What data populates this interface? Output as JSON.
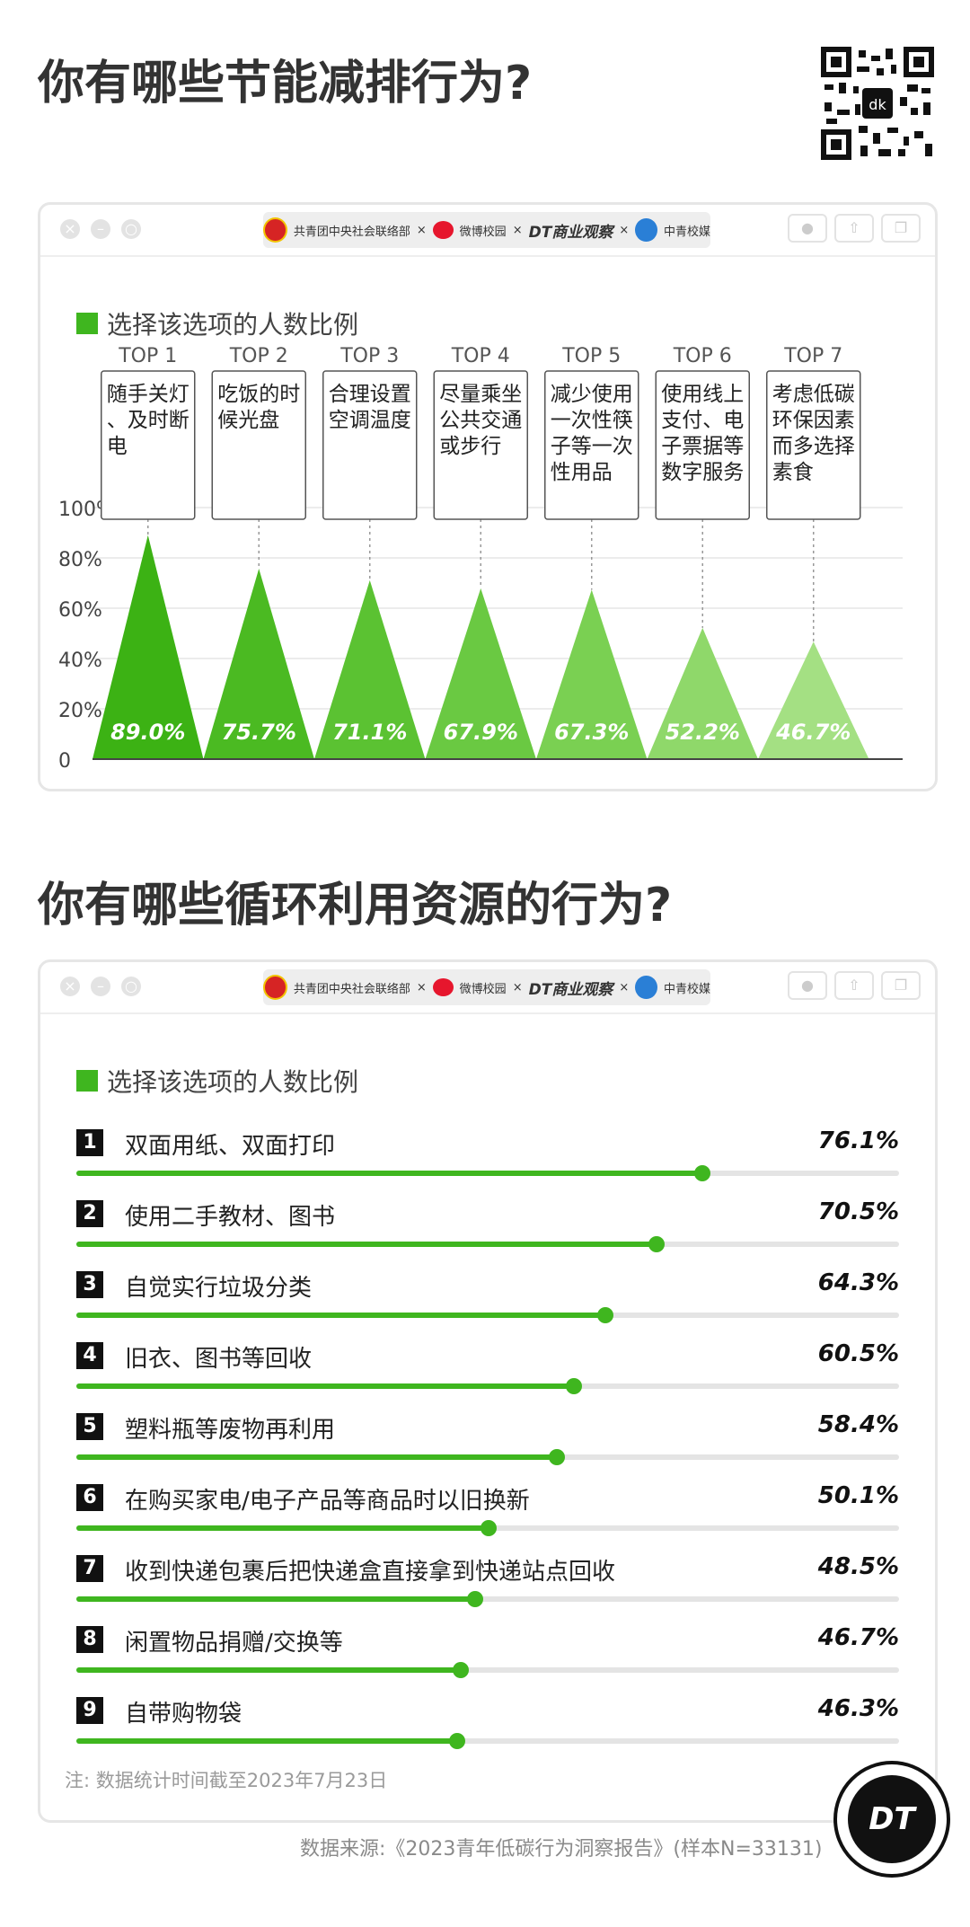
{
  "section1": {
    "title": "你有哪些节能减排行为?",
    "legend": "选择该选项的人数比例",
    "logos": {
      "org1": "共青团中央社会联络部",
      "sep": "×",
      "org2": "微博校园",
      "org3": "DT商业观察",
      "org4": "中青校媒"
    }
  },
  "section2": {
    "title": "你有哪些循环利用资源的行为?",
    "legend": "选择该选项的人数比例",
    "logos": {
      "org1": "共青团中央社会联络部",
      "sep": "×",
      "org2": "微博校园",
      "org3": "DT商业观察",
      "org4": "中青校媒"
    }
  },
  "qr_code": {
    "icon": "qr-code-icon",
    "center_text": "dk"
  },
  "chart_data": [
    {
      "type": "bar",
      "bar_shape": "triangle",
      "legend": "选择该选项的人数比例",
      "categories": [
        "TOP 1",
        "TOP 2",
        "TOP 3",
        "TOP 4",
        "TOP 5",
        "TOP 6",
        "TOP 7"
      ],
      "category_descriptions": [
        "随手关灯、及时断电",
        "吃饭的时候光盘",
        "合理设置空调温度",
        "尽量乘坐公共交通或步行",
        "减少使用一次性筷子等一次性用品",
        "使用线上支付、电子票据等数字服务",
        "考虑低碳环保因素而多选择素食"
      ],
      "values": [
        89.0,
        75.7,
        71.1,
        67.9,
        67.3,
        52.2,
        46.7
      ],
      "value_labels": [
        "89.0%",
        "75.7%",
        "71.1%",
        "67.9%",
        "67.3%",
        "52.2%",
        "46.7%"
      ],
      "yticks": [
        "0",
        "20%",
        "40%",
        "60%",
        "80%",
        "100%"
      ],
      "ylim": [
        0,
        100
      ],
      "unit": "%",
      "colors": [
        "#3cb214",
        "#4bba22",
        "#5bc232",
        "#6ac942",
        "#7ad052",
        "#8fd86a",
        "#a4e083"
      ]
    },
    {
      "type": "bar",
      "orientation": "horizontal",
      "legend": "选择该选项的人数比例",
      "ranks": [
        "1",
        "2",
        "3",
        "4",
        "5",
        "6",
        "7",
        "8",
        "9"
      ],
      "categories": [
        "双面用纸、双面打印",
        "使用二手教材、图书",
        "自觉实行垃圾分类",
        "旧衣、图书等回收",
        "塑料瓶等废物再利用",
        "在购买家电/电子产品等商品时以旧换新",
        "收到快递包裹后把快递盒直接拿到快递站点回收",
        "闲置物品捐赠/交换等",
        "自带购物袋"
      ],
      "values": [
        76.1,
        70.5,
        64.3,
        60.5,
        58.4,
        50.1,
        48.5,
        46.7,
        46.3
      ],
      "value_labels": [
        "76.1%",
        "70.5%",
        "64.3%",
        "60.5%",
        "58.4%",
        "50.1%",
        "48.5%",
        "46.7%",
        "46.3%"
      ],
      "scale_max": 100,
      "unit": "%",
      "color": "#3fb61f"
    }
  ],
  "footer": {
    "note": "注: 数据统计时间截至2023年7月23日",
    "source": "数据来源:《2023青年低碳行为洞察报告》(样本N=33131)",
    "badge": "DT"
  },
  "window_controls": {
    "close": "×",
    "minimize": "–",
    "maximize": "○"
  }
}
